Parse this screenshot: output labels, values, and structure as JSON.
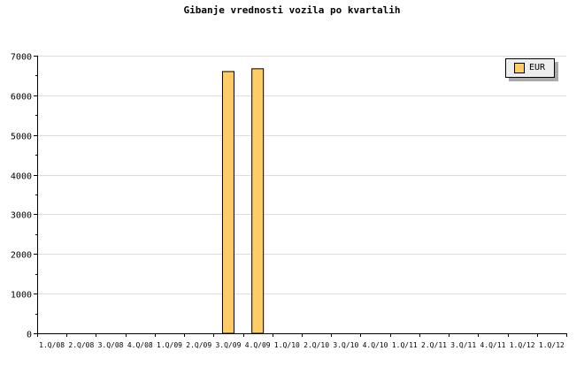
{
  "chart_data": {
    "type": "bar",
    "title": "Gibanje vrednosti vozila po kvartalih",
    "categories": [
      "1.Q/08",
      "2.Q/08",
      "3.Q/08",
      "4.Q/08",
      "1.Q/09",
      "2.Q/09",
      "3.Q/09",
      "4.Q/09",
      "1.Q/10",
      "2.Q/10",
      "3.Q/10",
      "4.Q/10",
      "1.Q/11",
      "2.Q/11",
      "3.Q/11",
      "4.Q/11",
      "1.Q/12",
      "1.Q/12"
    ],
    "series": [
      {
        "name": "EUR",
        "values": [
          0,
          0,
          0,
          0,
          0,
          0,
          6600,
          6670,
          0,
          0,
          0,
          0,
          0,
          0,
          0,
          0,
          0,
          0
        ],
        "color": "#ffcc66"
      }
    ],
    "ylim": [
      0,
      7000
    ],
    "yticks": [
      0,
      1000,
      2000,
      3000,
      4000,
      5000,
      6000,
      7000
    ],
    "grid": true,
    "legend": "top-right"
  }
}
